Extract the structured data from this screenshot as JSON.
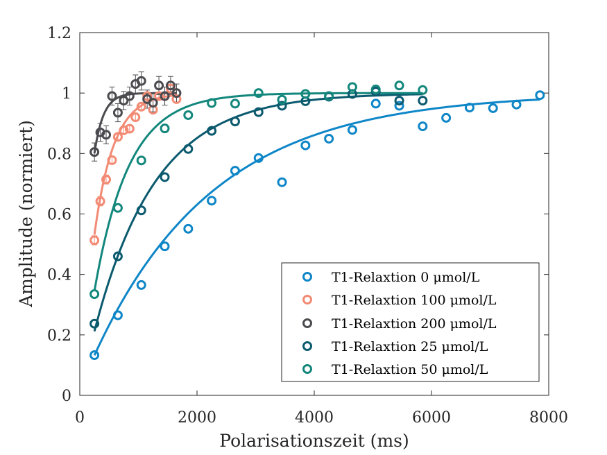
{
  "chart_data": {
    "type": "scatter",
    "xlabel": "Polarisationszeit (ms)",
    "ylabel": "Amplitude (normiert)",
    "xlim": [
      0,
      8000
    ],
    "ylim": [
      0,
      1.2
    ],
    "xticks": [
      0,
      2000,
      4000,
      6000,
      8000
    ],
    "yticks": [
      0,
      0.2,
      0.4,
      0.6,
      0.8,
      1,
      1.2
    ],
    "xtick_labels": [
      "0",
      "2000",
      "4000",
      "6000",
      "8000"
    ],
    "ytick_labels": [
      "0",
      "0.2",
      "0.4",
      "0.6",
      "0.8",
      "1",
      "1.2"
    ],
    "grid": false,
    "legend_position": "bottom-right",
    "series": [
      {
        "name": "T1-Relaxtion 0 μmol/L",
        "color": "#0e86c7",
        "x": [
          250,
          650,
          1050,
          1450,
          1850,
          2250,
          2650,
          3050,
          3450,
          3850,
          4250,
          4650,
          5050,
          5450,
          5850,
          6250,
          6650,
          7050,
          7450,
          7850
        ],
        "y": [
          0.133,
          0.265,
          0.365,
          0.493,
          0.551,
          0.644,
          0.743,
          0.785,
          0.705,
          0.827,
          0.849,
          0.878,
          0.965,
          0.958,
          0.89,
          0.918,
          0.952,
          0.95,
          0.962,
          0.993
        ],
        "fit": {
          "a0": 0.02,
          "tau": 2050,
          "x_start": 250,
          "x_end": 7850
        }
      },
      {
        "name": "T1-Relaxtion 100 μmol/L",
        "color": "#f28a74",
        "x": [
          250,
          350,
          450,
          550,
          650,
          750,
          850,
          950,
          1050,
          1150,
          1250,
          1350,
          1450,
          1550,
          1650
        ],
        "y": [
          0.513,
          0.642,
          0.714,
          0.778,
          0.855,
          0.877,
          0.882,
          0.92,
          0.955,
          0.99,
          0.945,
          0.99,
          0.99,
          1.015,
          0.98
        ],
        "errors": [
          0.015,
          0.015,
          0.015,
          0.012,
          0.012,
          0.012,
          0.012,
          0.012,
          0.012,
          0.012,
          0.012,
          0.012,
          0.012,
          0.012,
          0.012
        ],
        "fit": {
          "a0": 0.0,
          "tau": 330,
          "x_start": 250,
          "x_end": 1650
        }
      },
      {
        "name": "T1-Relaxtion 200 μmol/L",
        "color": "#4a4a4f",
        "x": [
          250,
          350,
          450,
          550,
          650,
          750,
          850,
          950,
          1050,
          1150,
          1250,
          1350,
          1450,
          1550,
          1650
        ],
        "y": [
          0.805,
          0.87,
          0.862,
          0.99,
          0.935,
          0.975,
          0.99,
          1.03,
          1.04,
          0.98,
          0.968,
          1.025,
          0.99,
          1.025,
          1.0
        ],
        "errors": [
          0.03,
          0.03,
          0.03,
          0.03,
          0.03,
          0.03,
          0.03,
          0.03,
          0.03,
          0.03,
          0.03,
          0.03,
          0.03,
          0.03,
          0.03
        ],
        "fit": {
          "a0": 0.0,
          "tau": 155,
          "x_start": 250,
          "x_end": 1650
        }
      },
      {
        "name": "T1-Relaxtion 25 μmol/L",
        "color": "#0b5a6e",
        "x": [
          250,
          650,
          1050,
          1450,
          1850,
          2250,
          2650,
          3050,
          3450,
          3850,
          4250,
          4650,
          5050,
          5450,
          5850
        ],
        "y": [
          0.237,
          0.46,
          0.612,
          0.722,
          0.815,
          0.875,
          0.906,
          0.937,
          0.958,
          0.973,
          0.988,
          0.997,
          1.005,
          0.975,
          0.975
        ],
        "fit": {
          "a0": 0.0,
          "tau": 1050,
          "x_start": 250,
          "x_end": 5850
        }
      },
      {
        "name": "T1-Relaxtion 50 μmol/L",
        "color": "#13877c",
        "x": [
          250,
          650,
          1050,
          1450,
          1850,
          2250,
          2650,
          3050,
          3450,
          3850,
          4250,
          4650,
          5050,
          5450,
          5850
        ],
        "y": [
          0.335,
          0.62,
          0.777,
          0.883,
          0.927,
          0.967,
          0.965,
          1.0,
          0.978,
          0.997,
          0.99,
          1.02,
          1.012,
          1.025,
          1.01
        ],
        "fit": {
          "a0": 0.0,
          "tau": 590,
          "x_start": 250,
          "x_end": 5850
        }
      }
    ]
  }
}
